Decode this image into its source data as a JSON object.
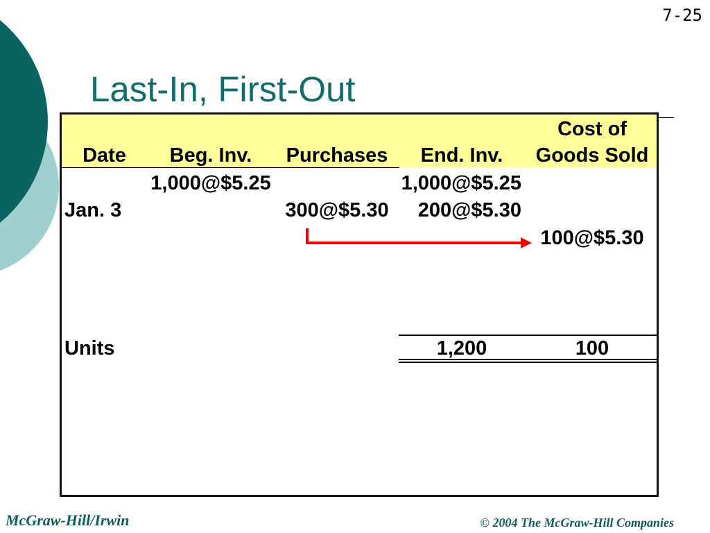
{
  "slide": {
    "page_number": "7-25",
    "title": "Last-In, First-Out"
  },
  "colors": {
    "accent_dark": "#0b6361",
    "accent_light": "#a0cfcf",
    "title": "#0f6e6b",
    "header_fill": "#ffff99",
    "arrow": "#ee0000",
    "footer": "#0f5c5a"
  },
  "icons": {
    "transfer_arrow": "elbow-right-arrow"
  },
  "table": {
    "headers": {
      "date": "Date",
      "beg_inv": "Beg. Inv.",
      "purchases": "Purchases",
      "end_inv": "End. Inv.",
      "cogs": [
        "Cost of",
        "Goods Sold"
      ]
    },
    "rows": [
      {
        "beg_inv": "1,000@$5.25",
        "end_inv": "1,000@$5.25"
      },
      {
        "date": "Jan. 3",
        "purchases": "300@$5.30",
        "end_inv": "200@$5.30"
      },
      {
        "cogs": "100@$5.30"
      }
    ],
    "totals": {
      "label": "Units",
      "end_inv": "1,200",
      "cogs": "100"
    }
  },
  "footer": {
    "left": "McGraw-Hill/Irwin",
    "right": "© 2004 The McGraw-Hill Companies"
  }
}
